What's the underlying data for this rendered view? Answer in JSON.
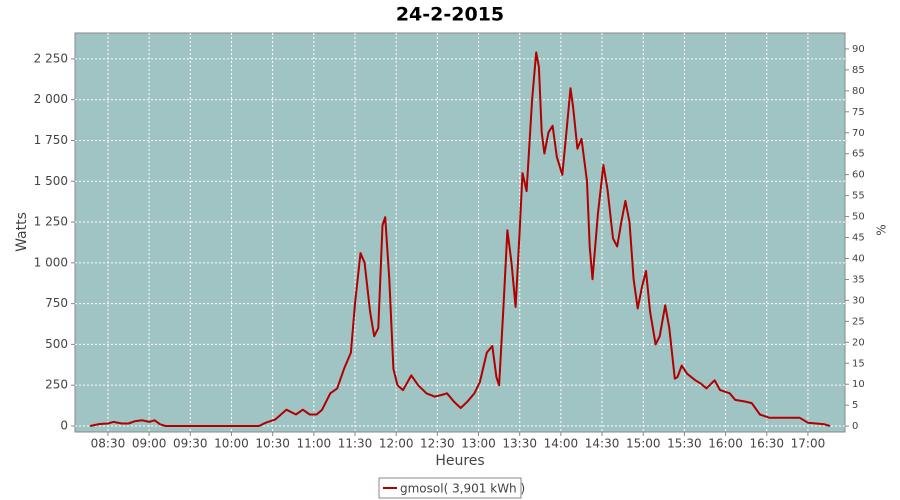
{
  "chart_data": {
    "type": "line",
    "title": "24-2-2015",
    "xlabel": "Heures",
    "ylabel": "Watts",
    "y2label": "%",
    "x": [
      "08:17",
      "08:24",
      "08:30",
      "08:34",
      "08:40",
      "08:45",
      "08:50",
      "08:55",
      "09:00",
      "09:04",
      "09:08",
      "09:12",
      "10:00",
      "10:20",
      "10:25",
      "10:32",
      "10:40",
      "10:47",
      "10:52",
      "10:57",
      "11:02",
      "11:06",
      "11:12",
      "11:17",
      "11:22",
      "11:27",
      "11:30",
      "11:34",
      "11:37",
      "11:41",
      "11:44",
      "11:47",
      "11:50",
      "11:52",
      "11:55",
      "11:58",
      "12:01",
      "12:05",
      "12:11",
      "12:16",
      "12:22",
      "12:28",
      "12:33",
      "12:37",
      "12:42",
      "12:47",
      "12:52",
      "12:57",
      "13:01",
      "13:06",
      "13:10",
      "13:13",
      "13:15",
      "13:18",
      "13:21",
      "13:24",
      "13:27",
      "13:30",
      "13:32",
      "13:35",
      "13:39",
      "13:42",
      "13:44",
      "13:46",
      "13:48",
      "13:51",
      "13:54",
      "13:57",
      "14:01",
      "14:04",
      "14:07",
      "14:09",
      "14:12",
      "14:15",
      "14:19",
      "14:21",
      "14:23",
      "14:27",
      "14:31",
      "14:34",
      "14:38",
      "14:41",
      "14:44",
      "14:47",
      "14:50",
      "14:53",
      "14:56",
      "14:59",
      "15:02",
      "15:05",
      "15:09",
      "15:12",
      "15:16",
      "15:19",
      "15:23",
      "15:25",
      "15:28",
      "15:32",
      "15:38",
      "15:42",
      "15:46",
      "15:52",
      "15:56",
      "16:03",
      "16:07",
      "16:14",
      "16:19",
      "16:25",
      "16:32",
      "16:54",
      "17:00",
      "17:12",
      "17:16"
    ],
    "series": [
      {
        "name": "gmosol( 3,901 kWh )",
        "color": "#b00000",
        "values": [
          0,
          12,
          15,
          25,
          15,
          15,
          30,
          35,
          25,
          35,
          10,
          0,
          0,
          0,
          20,
          40,
          100,
          70,
          100,
          70,
          70,
          100,
          200,
          230,
          350,
          450,
          750,
          1060,
          1000,
          700,
          550,
          600,
          1230,
          1280,
          900,
          350,
          250,
          220,
          310,
          250,
          200,
          180,
          190,
          200,
          150,
          110,
          150,
          200,
          270,
          450,
          490,
          300,
          250,
          700,
          1200,
          1000,
          730,
          1200,
          1550,
          1440,
          2000,
          2290,
          2200,
          1800,
          1670,
          1800,
          1840,
          1650,
          1540,
          1800,
          2070,
          1950,
          1700,
          1760,
          1500,
          1100,
          900,
          1300,
          1600,
          1450,
          1150,
          1100,
          1250,
          1380,
          1250,
          900,
          720,
          850,
          950,
          700,
          500,
          550,
          740,
          600,
          290,
          300,
          370,
          320,
          280,
          260,
          230,
          280,
          220,
          200,
          160,
          150,
          140,
          70,
          50,
          50,
          20,
          10,
          0
        ]
      }
    ],
    "xlim": [
      "08:06",
      "17:27"
    ],
    "xticks": [
      "08:30",
      "09:00",
      "09:30",
      "10:00",
      "10:30",
      "11:00",
      "11:30",
      "12:00",
      "12:30",
      "13:00",
      "13:30",
      "14:00",
      "14:30",
      "15:00",
      "15:30",
      "16:00",
      "16:30",
      "17:00"
    ],
    "ylim": [
      -37,
      2409
    ],
    "yticks": [
      0,
      250,
      500,
      750,
      {
        "value": 1000,
        "label": "1 000"
      },
      {
        "value": 1250,
        "label": "1 250"
      },
      {
        "value": 1500,
        "label": "1 500"
      },
      {
        "value": 1750,
        "label": "1 750"
      },
      {
        "value": 2000,
        "label": "2 000"
      },
      {
        "value": 2250,
        "label": "2 250"
      }
    ],
    "y2lim": [
      -1.4,
      93.8
    ],
    "y2ticks": [
      0,
      5,
      10,
      15,
      20,
      25,
      30,
      35,
      40,
      45,
      50,
      55,
      60,
      65,
      70,
      75,
      80,
      85,
      90
    ],
    "grid": true,
    "legend": "bottom"
  }
}
